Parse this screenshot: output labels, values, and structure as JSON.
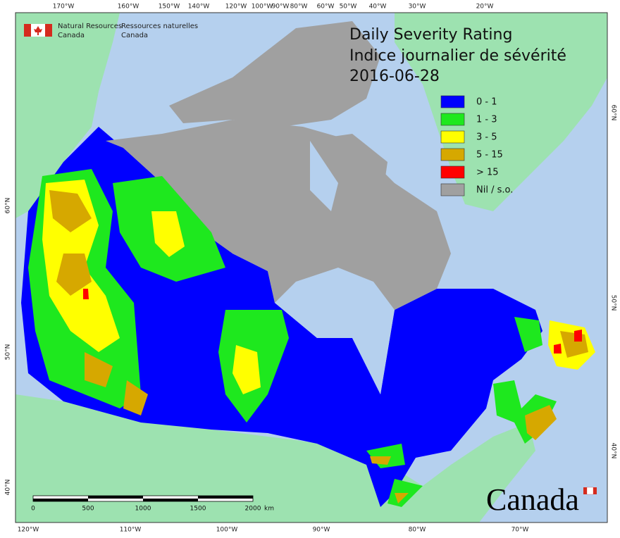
{
  "header": {
    "org_en": [
      "Natural Resources",
      "Canada"
    ],
    "org_fr": [
      "Ressources naturelles",
      "Canada"
    ]
  },
  "title": {
    "line1": "Daily Severity Rating",
    "line2": "Indice journalier de sévérité",
    "date": "2016-06-28"
  },
  "legend": [
    {
      "label": "0 - 1",
      "color": "#0000ff"
    },
    {
      "label": "1 - 3",
      "color": "#1ee81e"
    },
    {
      "label": "3 - 5",
      "color": "#ffff00"
    },
    {
      "label": "5 - 15",
      "color": "#d6a800"
    },
    {
      "label": "> 15",
      "color": "#ff0000"
    },
    {
      "label": "Nil / s.o.",
      "color": "#a0a0a0"
    }
  ],
  "graticule": {
    "top": [
      "170°W",
      "160°W",
      "150°W",
      "140°W",
      "120°W",
      "100°W",
      "90°W",
      "80°W",
      "60°W",
      "50°W",
      "40°W",
      "30°W",
      "20°W"
    ],
    "bottom": [
      "120°W",
      "110°W",
      "100°W",
      "90°W",
      "80°W",
      "70°W"
    ],
    "left": [
      "60°N",
      "50°N",
      "40°N"
    ],
    "right": [
      "60°N",
      "50°N",
      "40°N"
    ]
  },
  "scale_bar": {
    "ticks": [
      "0",
      "500",
      "1000",
      "1500",
      "2000"
    ],
    "unit": "km"
  },
  "wordmark": "Canada"
}
